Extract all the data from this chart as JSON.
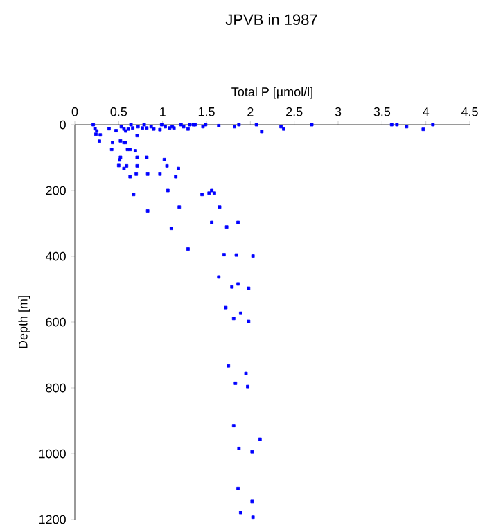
{
  "chart_data": {
    "type": "scatter",
    "title": "JPVB in 1987",
    "xlabel": "Total P [µmol/l]",
    "ylabel": "Depth [m]",
    "x": [
      0.21,
      0.23,
      0.25,
      0.24,
      0.28,
      0.29,
      0.39,
      0.43,
      0.42,
      0.47,
      0.51,
      0.5,
      0.52,
      0.52,
      0.56,
      0.58,
      0.56,
      0.59,
      0.63,
      0.6,
      0.63,
      0.69,
      0.71,
      0.71,
      0.71,
      0.7,
      0.67,
      0.82,
      0.83,
      0.83,
      0.97,
      1.02,
      1.05,
      1.15,
      1.18,
      1.06,
      1.19,
      1.1,
      1.29,
      1.45,
      1.53,
      1.56,
      1.59,
      1.65,
      1.56,
      1.73,
      1.86,
      0.53,
      0.56,
      0.58,
      0.61,
      0.64,
      0.66,
      0.72,
      0.77,
      0.79,
      0.82,
      0.87,
      0.9,
      0.97,
      0.99,
      1.03,
      1.08,
      1.11,
      1.13,
      1.21,
      1.24,
      1.29,
      1.31,
      1.35,
      1.37,
      1.46,
      1.49,
      1.64,
      1.82,
      1.87,
      2.07,
      2.13,
      2.35,
      2.38,
      2.7,
      3.61,
      3.67,
      3.78,
      3.97,
      4.08,
      1.7,
      1.84,
      2.03,
      1.64,
      1.79,
      1.86,
      1.98,
      1.72,
      1.89,
      1.81,
      1.98,
      1.75,
      1.95,
      1.83,
      1.97,
      1.81,
      2.11,
      1.87,
      2.02,
      1.86,
      2.02,
      1.89,
      2.03
    ],
    "values": [
      0,
      12,
      19,
      29,
      50,
      31,
      12,
      54,
      75,
      18,
      107,
      124,
      99,
      49,
      54,
      54,
      133,
      125,
      158,
      75,
      75,
      79,
      33,
      99,
      125,
      150,
      212,
      99,
      150,
      262,
      150,
      106,
      125,
      158,
      133,
      200,
      250,
      315,
      378,
      212,
      208,
      200,
      208,
      250,
      297,
      311,
      297,
      6,
      13,
      19,
      13,
      0,
      10,
      6,
      10,
      0,
      10,
      6,
      13,
      15,
      0,
      6,
      10,
      6,
      10,
      0,
      6,
      13,
      0,
      0,
      0,
      6,
      0,
      3,
      6,
      0,
      0,
      21,
      6,
      13,
      0,
      0,
      0,
      6,
      14,
      0,
      395,
      396,
      399,
      463,
      493,
      484,
      497,
      556,
      573,
      589,
      598,
      733,
      756,
      786,
      796,
      915,
      956,
      984,
      994,
      1106,
      1145,
      1179,
      1193
    ],
    "color": "#0000ff",
    "marker": "square",
    "xlim": [
      0,
      4.5
    ],
    "xticks": [
      0,
      0.5,
      1,
      1.5,
      2,
      2.5,
      3,
      3.5,
      4,
      4.5
    ],
    "ylim": [
      1200,
      0
    ],
    "yticks": [
      0,
      200,
      400,
      600,
      800,
      1000,
      1200
    ],
    "grid": false
  }
}
